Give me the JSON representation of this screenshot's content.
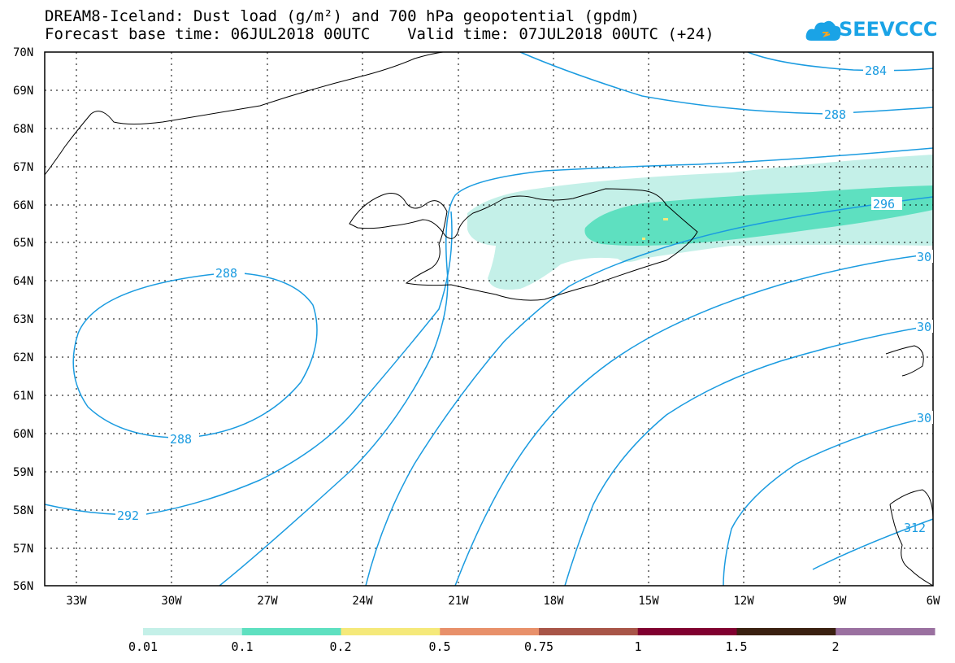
{
  "header": {
    "title_line1": "DREAM8-Iceland: Dust load (g/m²) and 700 hPa geopotential (gpdm)",
    "title_line2": "Forecast base time: 06JUL2018 00UTC    Valid time: 07JUL2018 00UTC (+24)",
    "logo_text": "SEEVCCC",
    "logo_icon": "cloud-logo-icon"
  },
  "map": {
    "lat_labels": [
      "70N",
      "69N",
      "68N",
      "67N",
      "66N",
      "65N",
      "64N",
      "63N",
      "62N",
      "61N",
      "60N",
      "59N",
      "58N",
      "57N",
      "56N"
    ],
    "lon_labels": [
      "33W",
      "30W",
      "27W",
      "24W",
      "21W",
      "18W",
      "15W",
      "12W",
      "9W",
      "6W"
    ],
    "contour_labels": [
      "284",
      "288",
      "288",
      "288",
      "296",
      "30",
      "30",
      "30",
      "292",
      "312"
    ],
    "contour_color": "#1a9be0",
    "coast_color": "#000000"
  },
  "colorbar": {
    "labels": [
      "0.01",
      "0.1",
      "0.2",
      "0.5",
      "0.75",
      "1",
      "1.5",
      "2"
    ],
    "colors": [
      "#c4f0e8",
      "#5ee0c0",
      "#f5e97a",
      "#e8906a",
      "#a85548",
      "#800030",
      "#3a2010",
      "#9a70a0"
    ]
  }
}
